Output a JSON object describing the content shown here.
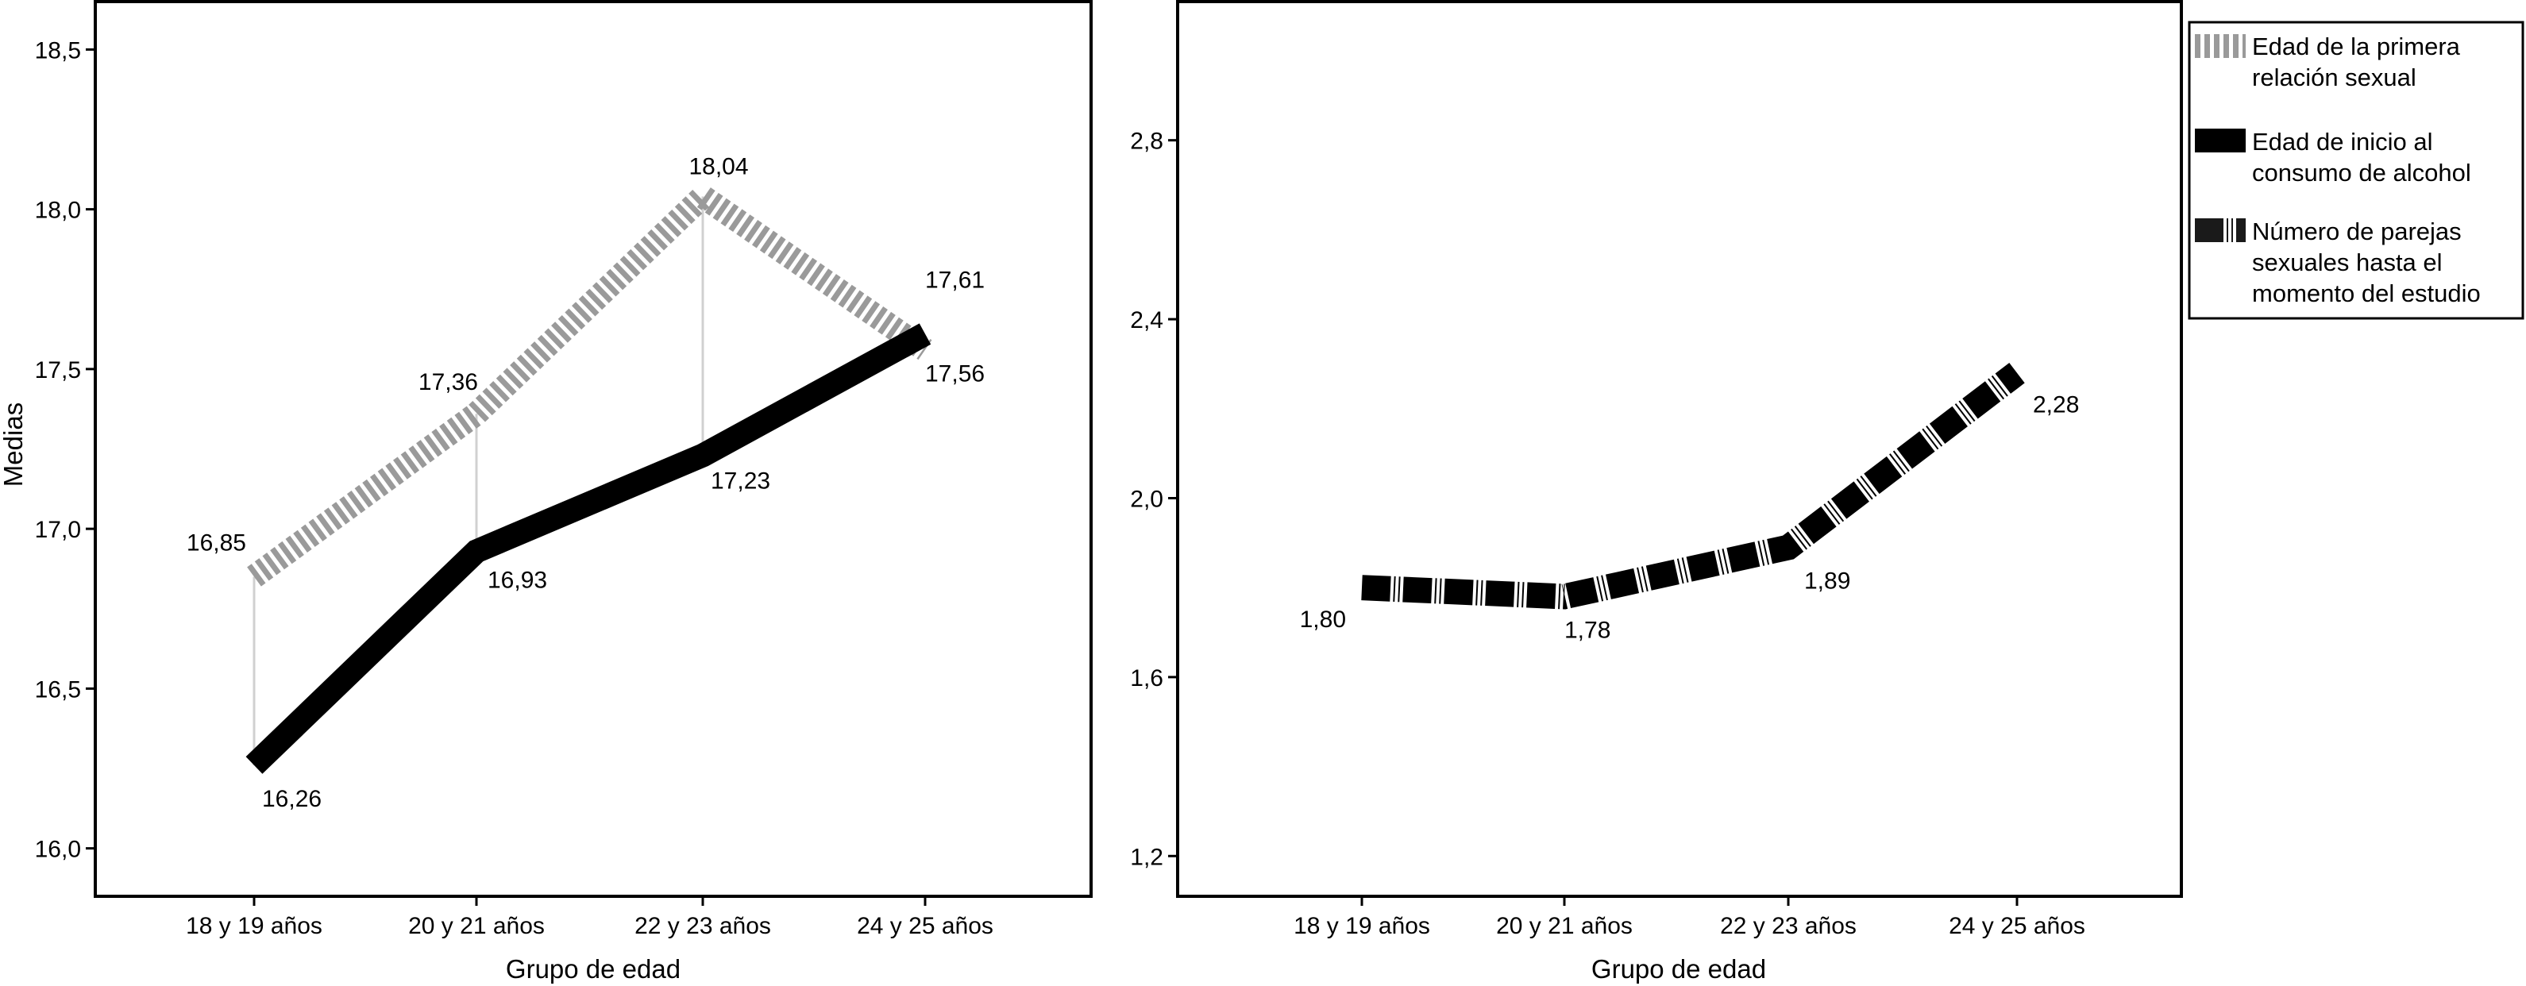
{
  "colors": {
    "primera_relacion": "#9a9a9a",
    "alcohol": "#000000",
    "parejas": "#000000",
    "connector": "#d0d0d0",
    "frame": "#000000"
  },
  "legend": {
    "items": [
      {
        "label_line1": "Edad de la primera",
        "label_line2": "relación sexual",
        "label_line3": ""
      },
      {
        "label_line1": "Edad de inicio al",
        "label_line2": "consumo de alcohol",
        "label_line3": ""
      },
      {
        "label_line1": "Número de parejas",
        "label_line2": "sexuales hasta el",
        "label_line3": "momento del estudio"
      }
    ]
  },
  "chart_data": [
    {
      "type": "line",
      "title": "",
      "xlabel": "Grupo de edad",
      "ylabel": "Medias",
      "categories": [
        "18 y 19 años",
        "20 y 21 años",
        "22 y 23 años",
        "24 y 25 años"
      ],
      "ylim": [
        15.85,
        18.65
      ],
      "yticks": [
        16.0,
        16.5,
        17.0,
        17.5,
        18.0,
        18.5
      ],
      "ytick_labels": [
        "16,0",
        "16,5",
        "17,0",
        "17,5",
        "18,0",
        "18,5"
      ],
      "grid": false,
      "series": [
        {
          "name": "Edad de la primera relación sexual",
          "values": [
            16.85,
            17.36,
            18.04,
            17.56
          ],
          "value_labels": [
            "16,85",
            "17,36",
            "18,04",
            "17,56"
          ],
          "style": "dashed-gray"
        },
        {
          "name": "Edad de inicio al consumo de alcohol",
          "values": [
            16.26,
            16.93,
            17.23,
            17.61
          ],
          "value_labels": [
            "16,26",
            "16,93",
            "17,23",
            "17,61"
          ],
          "style": "solid-black"
        }
      ]
    },
    {
      "type": "line",
      "title": "",
      "xlabel": "Grupo de edad",
      "ylabel": "",
      "categories": [
        "18 y 19 años",
        "20 y 21 años",
        "22 y 23 años",
        "24 y 25 años"
      ],
      "ylim": [
        1.11,
        3.11
      ],
      "yticks": [
        1.2,
        1.6,
        2.0,
        2.4,
        2.8
      ],
      "ytick_labels": [
        "1,2",
        "1,6",
        "2,0",
        "2,4",
        "2,8"
      ],
      "grid": false,
      "legend_position": "right",
      "series": [
        {
          "name": "Número de parejas sexuales hasta el momento del estudio",
          "values": [
            1.8,
            1.78,
            1.89,
            2.28
          ],
          "value_labels": [
            "1,80",
            "1,78",
            "1,89",
            "2,28"
          ],
          "style": "dashed-black"
        }
      ]
    }
  ]
}
